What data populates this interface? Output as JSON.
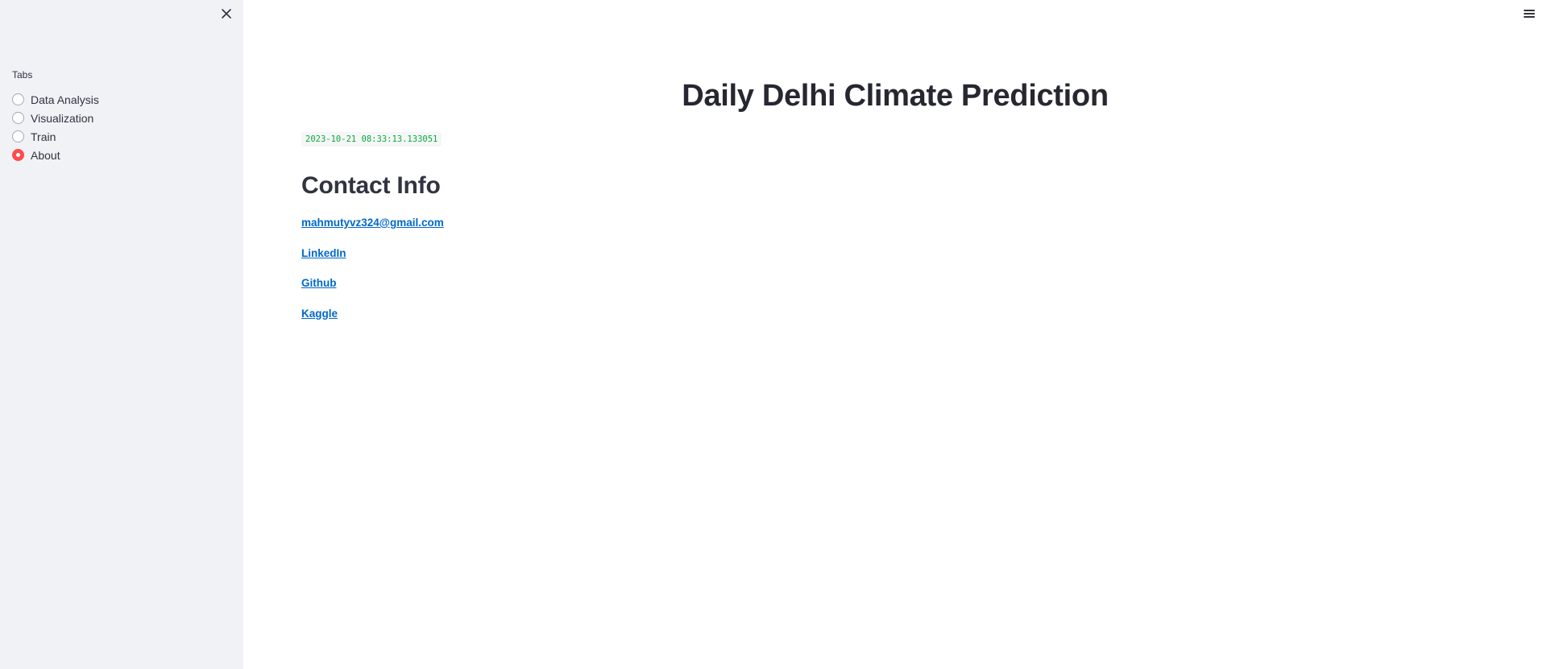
{
  "sidebar": {
    "radio_label": "Tabs",
    "options": [
      {
        "label": "Data Analysis",
        "selected": false
      },
      {
        "label": "Visualization",
        "selected": false
      },
      {
        "label": "Train",
        "selected": false
      },
      {
        "label": "About",
        "selected": true
      }
    ],
    "accent_color": "#ff4b4b"
  },
  "main": {
    "title": "Daily Delhi Climate Prediction",
    "timestamp": "2023-10-21 08:33:13.133051",
    "section_heading": "Contact Info",
    "links": [
      {
        "label": "mahmutyvz324@gmail.com"
      },
      {
        "label": "LinkedIn"
      },
      {
        "label": "Github"
      },
      {
        "label": "Kaggle"
      }
    ],
    "link_color": "#0068c9"
  },
  "icons": {
    "sidebar_close": "close-icon",
    "menu": "hamburger-menu-icon"
  }
}
